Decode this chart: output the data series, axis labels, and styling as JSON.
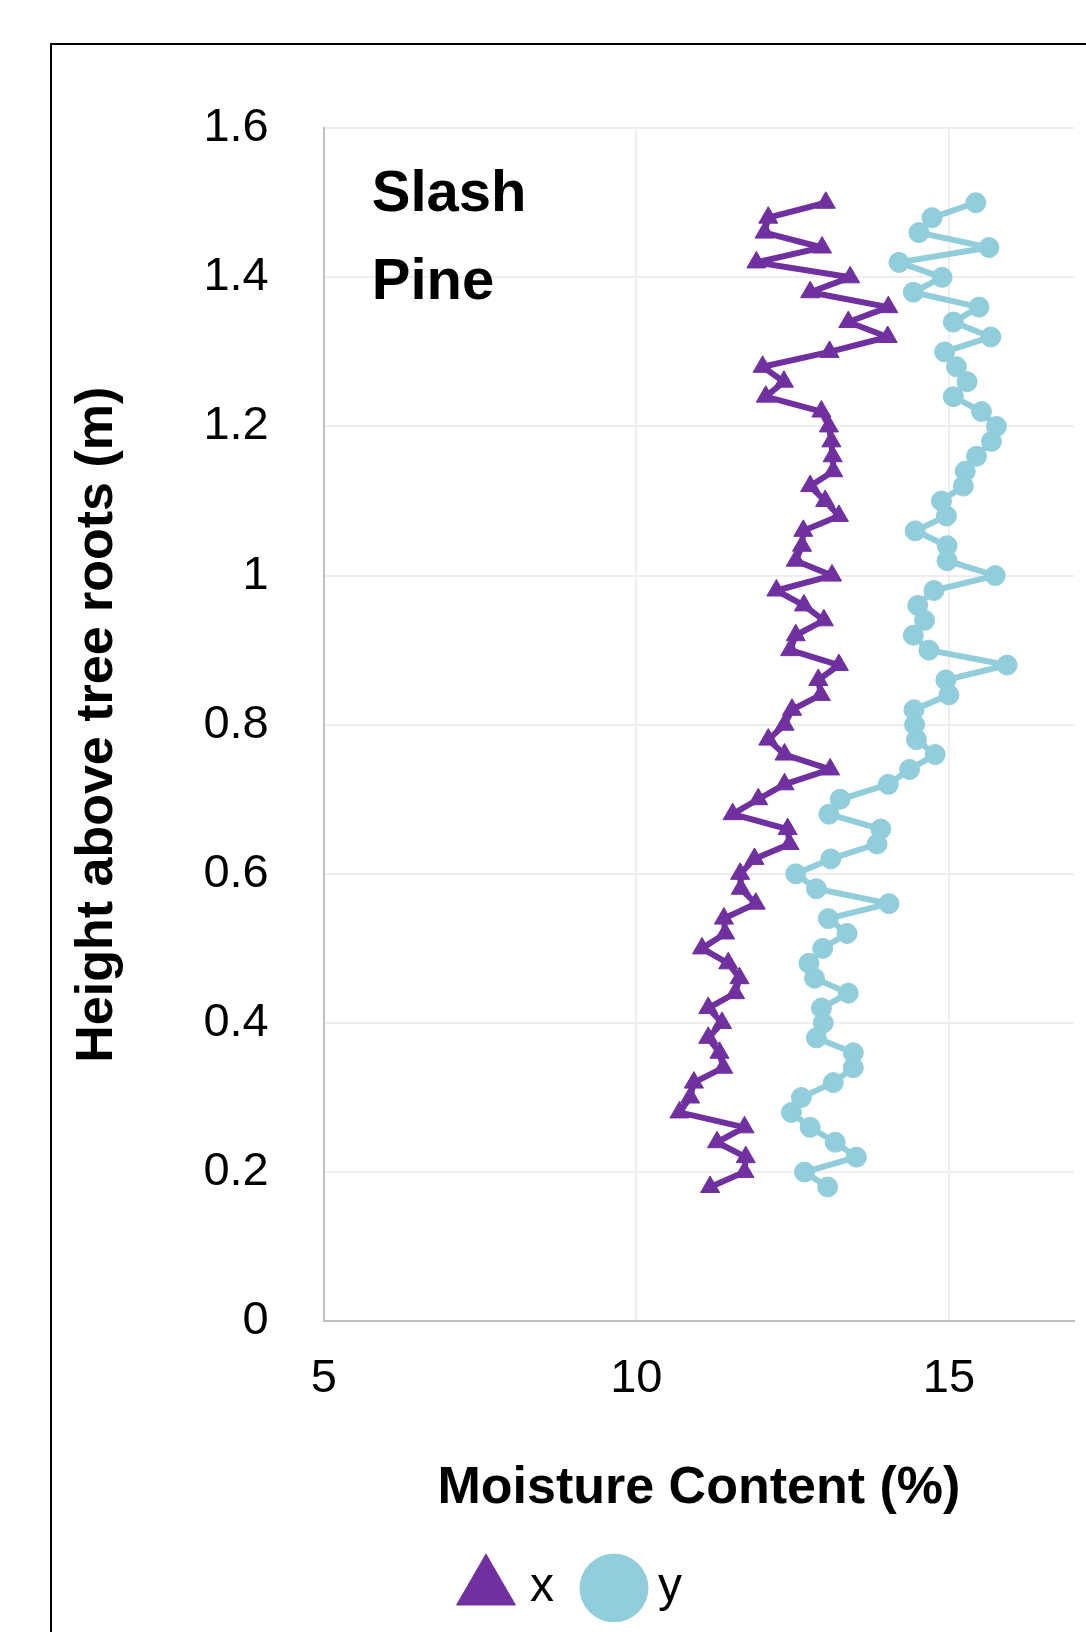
{
  "chart_data": {
    "type": "line",
    "title": "Slash Pine",
    "xlabel": "Moisture Content (%)",
    "ylabel": "Height above tree roots (m)",
    "xlim": [
      5,
      17
    ],
    "xticks": [
      5,
      10,
      15
    ],
    "ylim": [
      0,
      1.6
    ],
    "yticks": [
      0,
      0.2,
      0.4,
      0.6,
      0.8,
      1,
      1.2,
      1.4,
      1.6
    ],
    "grid": true,
    "legend": "bottom",
    "line_style": "solid",
    "series": [
      {
        "name": "x",
        "color": "#7030a0",
        "marker": "triangle",
        "x": [
          13.03,
          12.11,
          12.05,
          12.97,
          11.92,
          13.42,
          12.78,
          14.03,
          13.39,
          14.02,
          13.09,
          12.02,
          12.36,
          12.07,
          12.96,
          13.08,
          13.12,
          13.14,
          13.15,
          12.78,
          13.02,
          13.24,
          12.67,
          12.65,
          12.55,
          13.13,
          12.24,
          12.68,
          13.0,
          12.55,
          12.46,
          13.24,
          12.91,
          12.95,
          12.49,
          12.37,
          12.11,
          12.37,
          13.1,
          12.37,
          11.95,
          11.54,
          12.42,
          12.45,
          11.89,
          11.66,
          11.67,
          11.91,
          11.4,
          11.42,
          11.05,
          11.47,
          11.65,
          11.58,
          11.15,
          11.37,
          11.15,
          11.33,
          11.39,
          10.92,
          10.86,
          10.69,
          11.73,
          11.29,
          11.75,
          11.73,
          11.18
        ],
        "values": [
          1.5,
          1.48,
          1.46,
          1.44,
          1.42,
          1.4,
          1.38,
          1.36,
          1.34,
          1.32,
          1.3,
          1.28,
          1.26,
          1.24,
          1.22,
          1.2,
          1.18,
          1.16,
          1.14,
          1.12,
          1.1,
          1.08,
          1.06,
          1.04,
          1.02,
          1,
          0.98,
          0.96,
          0.94,
          0.92,
          0.9,
          0.88,
          0.86,
          0.84,
          0.82,
          0.8,
          0.78,
          0.76,
          0.74,
          0.72,
          0.7,
          0.68,
          0.66,
          0.64,
          0.62,
          0.6,
          0.58,
          0.56,
          0.54,
          0.52,
          0.5,
          0.48,
          0.46,
          0.44,
          0.42,
          0.4,
          0.38,
          0.36,
          0.34,
          0.32,
          0.3,
          0.28,
          0.26,
          0.24,
          0.22,
          0.2,
          0.18
        ]
      },
      {
        "name": "y",
        "color": "#92cddc",
        "marker": "circle",
        "x": [
          15.43,
          14.73,
          14.52,
          15.64,
          14.2,
          14.89,
          14.43,
          15.48,
          15.07,
          15.67,
          14.93,
          15.12,
          15.29,
          15.07,
          15.52,
          15.76,
          15.68,
          15.44,
          15.26,
          15.23,
          14.88,
          14.96,
          14.46,
          14.97,
          14.97,
          15.74,
          14.76,
          14.5,
          14.61,
          14.43,
          14.68,
          15.93,
          14.95,
          15.0,
          14.44,
          14.45,
          14.48,
          14.78,
          14.37,
          14.03,
          13.26,
          13.08,
          13.91,
          13.85,
          13.11,
          12.55,
          12.88,
          14.04,
          13.07,
          13.37,
          12.98,
          12.76,
          12.85,
          13.39,
          12.96,
          12.99,
          12.88,
          13.47,
          13.47,
          13.15,
          12.64,
          12.48,
          12.78,
          13.18,
          13.52,
          12.69,
          13.06
        ],
        "values": [
          1.5,
          1.48,
          1.46,
          1.44,
          1.42,
          1.4,
          1.38,
          1.36,
          1.34,
          1.32,
          1.3,
          1.28,
          1.26,
          1.24,
          1.22,
          1.2,
          1.18,
          1.16,
          1.14,
          1.12,
          1.1,
          1.08,
          1.06,
          1.04,
          1.02,
          1,
          0.98,
          0.96,
          0.94,
          0.92,
          0.9,
          0.88,
          0.86,
          0.84,
          0.82,
          0.8,
          0.78,
          0.76,
          0.74,
          0.72,
          0.7,
          0.68,
          0.66,
          0.64,
          0.62,
          0.6,
          0.58,
          0.56,
          0.54,
          0.52,
          0.5,
          0.48,
          0.46,
          0.44,
          0.42,
          0.4,
          0.38,
          0.36,
          0.34,
          0.32,
          0.3,
          0.28,
          0.26,
          0.24,
          0.22,
          0.2,
          0.18
        ]
      }
    ]
  }
}
